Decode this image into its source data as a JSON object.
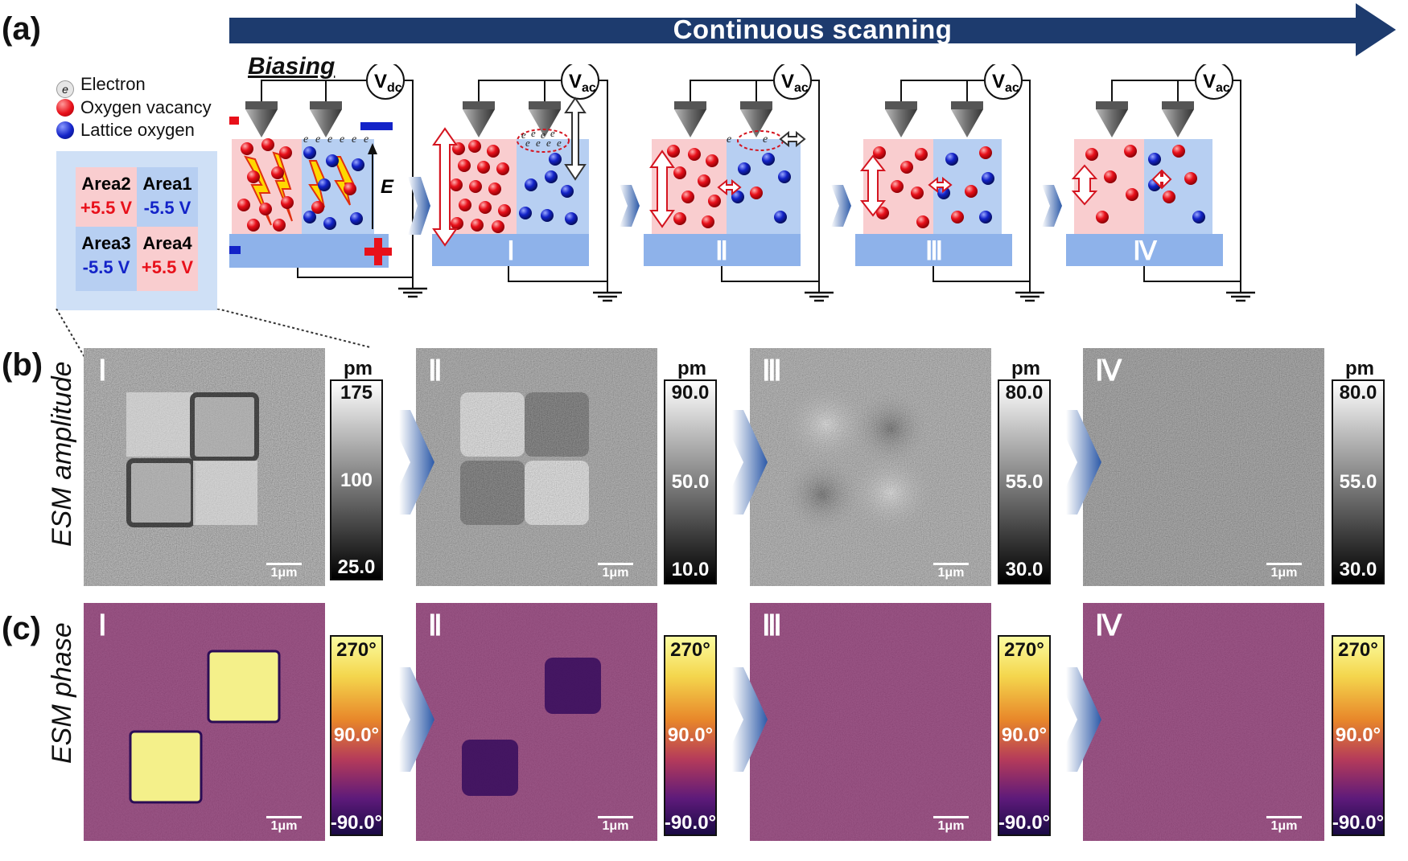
{
  "panel_labels": {
    "a": "(a)",
    "b": "(b)",
    "c": "(c)"
  },
  "banner": {
    "text": "Continuous scanning",
    "color": "#1d3b6e"
  },
  "biasing": "Biasing",
  "legend": {
    "electron_symbol": "e",
    "electron_sup": "-",
    "electron": "Electron",
    "vacancy": "Oxygen vacancy",
    "lattice": "Lattice oxygen"
  },
  "areas": {
    "area2": {
      "name": "Area2",
      "voltage": "+5.5 V"
    },
    "area1": {
      "name": "Area1",
      "voltage": "-5.5 V"
    },
    "area3": {
      "name": "Area3",
      "voltage": "-5.5 V"
    },
    "area4": {
      "name": "Area4",
      "voltage": "+5.5 V"
    }
  },
  "schematic": {
    "field_label": "E",
    "vdc": {
      "main": "V",
      "sub": "dc"
    },
    "vac": {
      "main": "V",
      "sub": "ac"
    },
    "e_symbol": "e",
    "stages": [
      "Ⅰ",
      "Ⅱ",
      "Ⅲ",
      "Ⅳ"
    ]
  },
  "row_labels": {
    "amplitude": "ESM amplitude",
    "phase": "ESM phase"
  },
  "amplitude": {
    "unit": "pm",
    "images": [
      {
        "label": "Ⅰ",
        "scale": "1μm",
        "cb": [
          "175",
          "100",
          "25.0"
        ]
      },
      {
        "label": "Ⅱ",
        "scale": "1μm",
        "cb": [
          "90.0",
          "50.0",
          "10.0"
        ]
      },
      {
        "label": "Ⅲ",
        "scale": "1μm",
        "cb": [
          "80.0",
          "55.0",
          "30.0"
        ]
      },
      {
        "label": "Ⅳ",
        "scale": "1μm",
        "cb": [
          "80.0",
          "55.0",
          "30.0"
        ]
      }
    ]
  },
  "phase": {
    "images": [
      {
        "label": "Ⅰ",
        "scale": "1μm",
        "cb": [
          "270°",
          "90.0°",
          "-90.0°"
        ]
      },
      {
        "label": "Ⅱ",
        "scale": "1μm",
        "cb": [
          "270°",
          "90.0°",
          "-90.0°"
        ]
      },
      {
        "label": "Ⅲ",
        "scale": "1μm",
        "cb": [
          "270°",
          "90.0°",
          "-90.0°"
        ]
      },
      {
        "label": "Ⅳ",
        "scale": "1μm",
        "cb": [
          "270°",
          "90.0°",
          "-90.0°"
        ]
      }
    ]
  },
  "colors": {
    "vacancy": "#e8101a",
    "lattice": "#1323c8",
    "pink": "#f9cdcf",
    "lightblue": "#b7cff2",
    "substrate": "#8eb2ea",
    "phase_bg": "#8a3470",
    "phase_high": "#f4f08a",
    "phase_dark": "#2a0c55"
  }
}
